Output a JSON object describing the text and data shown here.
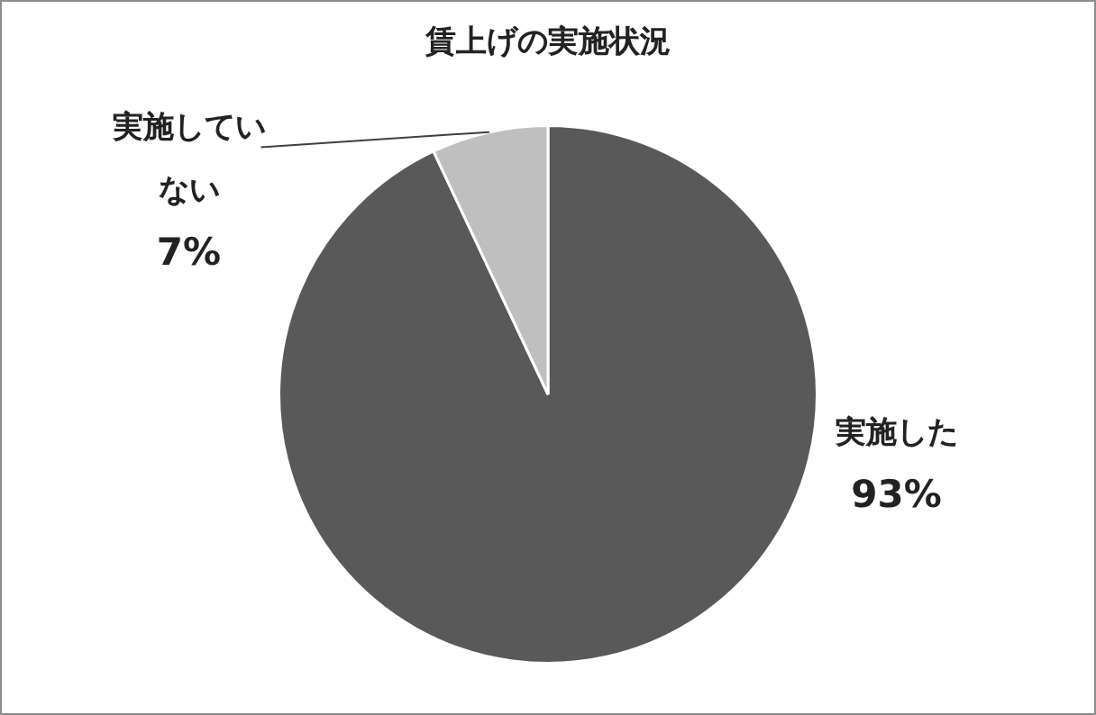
{
  "chart_data": {
    "type": "pie",
    "title": "賃上げの実施状況",
    "categories": [
      "実施した",
      "実施していない"
    ],
    "values": [
      93,
      7
    ],
    "colors": [
      "#595959",
      "#bfbfbf"
    ],
    "value_labels": [
      "93%",
      "7%"
    ],
    "legend": false
  }
}
